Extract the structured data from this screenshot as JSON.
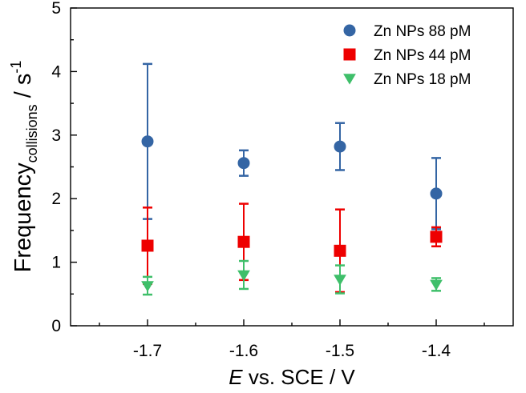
{
  "chart_data": {
    "type": "scatter",
    "title": "",
    "xlabel": {
      "italic": "E",
      "rest": " vs. SCE / V"
    },
    "ylabel": {
      "main": "Frequency",
      "subscript": "collisions",
      "unit": " / s",
      "superscript": "-1"
    },
    "xlim": [
      -1.78,
      -1.32
    ],
    "ylim": [
      0,
      5
    ],
    "x_ticks": [
      -1.7,
      -1.6,
      -1.5,
      -1.4
    ],
    "x_tick_labels": [
      "-1.7",
      "-1.6",
      "-1.5",
      "-1.4"
    ],
    "y_ticks": [
      0,
      1,
      2,
      3,
      4,
      5
    ],
    "y_tick_labels": [
      "0",
      "1",
      "2",
      "3",
      "4",
      "5"
    ],
    "grid": false,
    "legend_position": "top-right",
    "series": [
      {
        "name": "Zn NPs 88 pM",
        "marker": "circle",
        "color": "#3465a4",
        "x": [
          -1.7,
          -1.6,
          -1.5,
          -1.4
        ],
        "y": [
          2.9,
          2.56,
          2.82,
          2.08
        ],
        "err_low": [
          1.22,
          0.2,
          0.37,
          0.56
        ],
        "err_high": [
          1.22,
          0.2,
          0.37,
          0.56
        ]
      },
      {
        "name": "Zn NPs 44 pM",
        "marker": "square",
        "color": "#ee0000",
        "x": [
          -1.7,
          -1.6,
          -1.5,
          -1.4
        ],
        "y": [
          1.26,
          1.32,
          1.18,
          1.4
        ],
        "err_low": [
          0.6,
          0.6,
          0.65,
          0.15
        ],
        "err_high": [
          0.6,
          0.6,
          0.65,
          0.15
        ]
      },
      {
        "name": "Zn NPs 18 pM",
        "marker": "triangle-down",
        "color": "#3fbf6a",
        "x": [
          -1.7,
          -1.6,
          -1.5,
          -1.4
        ],
        "y": [
          0.63,
          0.8,
          0.73,
          0.65
        ],
        "err_low": [
          0.14,
          0.22,
          0.22,
          0.1
        ],
        "err_high": [
          0.14,
          0.22,
          0.22,
          0.1
        ]
      }
    ]
  }
}
